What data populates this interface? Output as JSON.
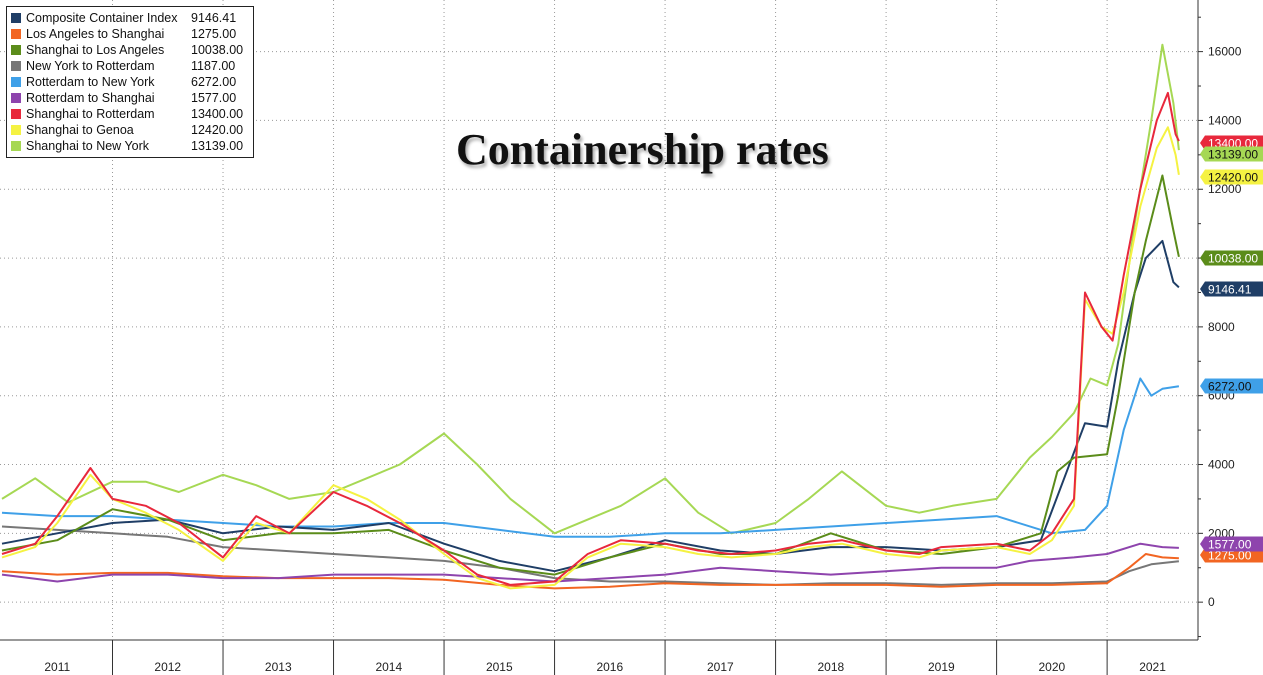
{
  "chart_data": {
    "type": "line",
    "title": "Containership rates",
    "xlabel": "",
    "ylabel": "",
    "ylim": [
      -1100,
      17500
    ],
    "y_ticks": [
      0,
      2000,
      4000,
      6000,
      8000,
      10000,
      12000,
      14000,
      16000
    ],
    "y_tick_labels": [
      "0",
      "2000",
      "4000",
      "6000",
      "8000",
      "10000",
      "12000",
      "14000",
      "16000"
    ],
    "x_years": [
      "2011",
      "2012",
      "2013",
      "2014",
      "2015",
      "2016",
      "2017",
      "2018",
      "2019",
      "2020",
      "2021"
    ],
    "x_range": [
      2011.0,
      2021.75
    ],
    "grid": true,
    "legend_position": "top-left",
    "series": [
      {
        "name": "Composite Container Index",
        "color": "#1f3e66",
        "last_label": "9146.41",
        "points": [
          [
            2011.0,
            1700
          ],
          [
            2011.5,
            2000
          ],
          [
            2012.0,
            2300
          ],
          [
            2012.5,
            2400
          ],
          [
            2013.0,
            2000
          ],
          [
            2013.5,
            2200
          ],
          [
            2014.0,
            2100
          ],
          [
            2014.5,
            2300
          ],
          [
            2015.0,
            1700
          ],
          [
            2015.5,
            1200
          ],
          [
            2016.0,
            900
          ],
          [
            2016.5,
            1300
          ],
          [
            2017.0,
            1800
          ],
          [
            2017.5,
            1500
          ],
          [
            2018.0,
            1400
          ],
          [
            2018.5,
            1600
          ],
          [
            2019.0,
            1600
          ],
          [
            2019.5,
            1500
          ],
          [
            2020.0,
            1600
          ],
          [
            2020.4,
            1800
          ],
          [
            2020.6,
            3500
          ],
          [
            2020.8,
            5200
          ],
          [
            2021.0,
            5100
          ],
          [
            2021.1,
            7000
          ],
          [
            2021.25,
            9000
          ],
          [
            2021.35,
            10000
          ],
          [
            2021.5,
            10500
          ],
          [
            2021.6,
            9300
          ],
          [
            2021.65,
            9146.41
          ]
        ]
      },
      {
        "name": "Los Angeles to Shanghai",
        "color": "#f26522",
        "last_label": "1275.00",
        "points": [
          [
            2011.0,
            900
          ],
          [
            2011.5,
            800
          ],
          [
            2012.0,
            850
          ],
          [
            2012.5,
            850
          ],
          [
            2013.0,
            750
          ],
          [
            2013.5,
            700
          ],
          [
            2014.0,
            700
          ],
          [
            2014.5,
            700
          ],
          [
            2015.0,
            650
          ],
          [
            2015.5,
            500
          ],
          [
            2016.0,
            400
          ],
          [
            2016.5,
            450
          ],
          [
            2017.0,
            550
          ],
          [
            2017.5,
            500
          ],
          [
            2018.0,
            500
          ],
          [
            2018.5,
            500
          ],
          [
            2019.0,
            500
          ],
          [
            2019.5,
            450
          ],
          [
            2020.0,
            500
          ],
          [
            2020.5,
            500
          ],
          [
            2021.0,
            550
          ],
          [
            2021.2,
            1000
          ],
          [
            2021.35,
            1400
          ],
          [
            2021.5,
            1300
          ],
          [
            2021.65,
            1275
          ]
        ]
      },
      {
        "name": "Shanghai to Los Angeles",
        "color": "#5b8c1a",
        "last_label": "10038.00",
        "points": [
          [
            2011.0,
            1500
          ],
          [
            2011.5,
            1800
          ],
          [
            2012.0,
            2700
          ],
          [
            2012.5,
            2400
          ],
          [
            2013.0,
            1800
          ],
          [
            2013.5,
            2000
          ],
          [
            2014.0,
            2000
          ],
          [
            2014.5,
            2100
          ],
          [
            2015.0,
            1500
          ],
          [
            2015.5,
            1000
          ],
          [
            2016.0,
            800
          ],
          [
            2016.5,
            1300
          ],
          [
            2017.0,
            1700
          ],
          [
            2017.5,
            1400
          ],
          [
            2018.0,
            1400
          ],
          [
            2018.5,
            2000
          ],
          [
            2019.0,
            1500
          ],
          [
            2019.5,
            1400
          ],
          [
            2020.0,
            1600
          ],
          [
            2020.4,
            2000
          ],
          [
            2020.55,
            3800
          ],
          [
            2020.7,
            4200
          ],
          [
            2021.0,
            4300
          ],
          [
            2021.1,
            6000
          ],
          [
            2021.25,
            9000
          ],
          [
            2021.35,
            10500
          ],
          [
            2021.5,
            12400
          ],
          [
            2021.6,
            10800
          ],
          [
            2021.65,
            10038
          ]
        ]
      },
      {
        "name": "New York to Rotterdam",
        "color": "#777777",
        "last_label": "1187.00",
        "points": [
          [
            2011.0,
            2200
          ],
          [
            2011.5,
            2100
          ],
          [
            2012.0,
            2000
          ],
          [
            2012.5,
            1900
          ],
          [
            2013.0,
            1600
          ],
          [
            2013.5,
            1500
          ],
          [
            2014.0,
            1400
          ],
          [
            2014.5,
            1300
          ],
          [
            2015.0,
            1200
          ],
          [
            2015.5,
            1000
          ],
          [
            2016.0,
            700
          ],
          [
            2016.5,
            600
          ],
          [
            2017.0,
            600
          ],
          [
            2017.5,
            550
          ],
          [
            2018.0,
            500
          ],
          [
            2018.5,
            550
          ],
          [
            2019.0,
            550
          ],
          [
            2019.5,
            500
          ],
          [
            2020.0,
            550
          ],
          [
            2020.5,
            550
          ],
          [
            2021.0,
            600
          ],
          [
            2021.2,
            900
          ],
          [
            2021.4,
            1100
          ],
          [
            2021.65,
            1187
          ]
        ]
      },
      {
        "name": "Rotterdam to New York",
        "color": "#3fa0e8",
        "last_label": "6272.00",
        "points": [
          [
            2011.0,
            2600
          ],
          [
            2011.5,
            2500
          ],
          [
            2012.0,
            2500
          ],
          [
            2012.5,
            2400
          ],
          [
            2013.0,
            2300
          ],
          [
            2013.5,
            2200
          ],
          [
            2014.0,
            2200
          ],
          [
            2014.5,
            2300
          ],
          [
            2015.0,
            2300
          ],
          [
            2015.5,
            2100
          ],
          [
            2016.0,
            1900
          ],
          [
            2016.5,
            1900
          ],
          [
            2017.0,
            2000
          ],
          [
            2017.5,
            2000
          ],
          [
            2018.0,
            2100
          ],
          [
            2018.5,
            2200
          ],
          [
            2019.0,
            2300
          ],
          [
            2019.5,
            2400
          ],
          [
            2020.0,
            2500
          ],
          [
            2020.5,
            2000
          ],
          [
            2020.8,
            2100
          ],
          [
            2021.0,
            2800
          ],
          [
            2021.15,
            5000
          ],
          [
            2021.3,
            6500
          ],
          [
            2021.4,
            6000
          ],
          [
            2021.5,
            6200
          ],
          [
            2021.65,
            6272
          ]
        ]
      },
      {
        "name": "Rotterdam to Shanghai",
        "color": "#8e44ad",
        "last_label": "1577.00",
        "points": [
          [
            2011.0,
            800
          ],
          [
            2011.5,
            600
          ],
          [
            2012.0,
            800
          ],
          [
            2012.5,
            800
          ],
          [
            2013.0,
            700
          ],
          [
            2013.5,
            700
          ],
          [
            2014.0,
            800
          ],
          [
            2014.5,
            800
          ],
          [
            2015.0,
            800
          ],
          [
            2015.5,
            700
          ],
          [
            2016.0,
            600
          ],
          [
            2016.5,
            700
          ],
          [
            2017.0,
            800
          ],
          [
            2017.5,
            1000
          ],
          [
            2018.0,
            900
          ],
          [
            2018.5,
            800
          ],
          [
            2019.0,
            900
          ],
          [
            2019.5,
            1000
          ],
          [
            2020.0,
            1000
          ],
          [
            2020.3,
            1200
          ],
          [
            2020.7,
            1300
          ],
          [
            2021.0,
            1400
          ],
          [
            2021.3,
            1700
          ],
          [
            2021.5,
            1600
          ],
          [
            2021.65,
            1577
          ]
        ]
      },
      {
        "name": "Shanghai to Rotterdam",
        "color": "#e8283c",
        "last_label": "13400.00",
        "points": [
          [
            2011.0,
            1400
          ],
          [
            2011.3,
            1700
          ],
          [
            2011.5,
            2500
          ],
          [
            2011.8,
            3900
          ],
          [
            2012.0,
            3000
          ],
          [
            2012.3,
            2800
          ],
          [
            2012.6,
            2300
          ],
          [
            2013.0,
            1300
          ],
          [
            2013.3,
            2500
          ],
          [
            2013.6,
            2000
          ],
          [
            2014.0,
            3200
          ],
          [
            2014.3,
            2800
          ],
          [
            2014.6,
            2300
          ],
          [
            2015.0,
            1500
          ],
          [
            2015.3,
            800
          ],
          [
            2015.6,
            500
          ],
          [
            2016.0,
            600
          ],
          [
            2016.3,
            1400
          ],
          [
            2016.6,
            1800
          ],
          [
            2017.0,
            1700
          ],
          [
            2017.3,
            1500
          ],
          [
            2017.6,
            1400
          ],
          [
            2018.0,
            1500
          ],
          [
            2018.3,
            1700
          ],
          [
            2018.6,
            1800
          ],
          [
            2019.0,
            1500
          ],
          [
            2019.3,
            1400
          ],
          [
            2019.5,
            1600
          ],
          [
            2020.0,
            1700
          ],
          [
            2020.3,
            1500
          ],
          [
            2020.5,
            2000
          ],
          [
            2020.7,
            3000
          ],
          [
            2020.8,
            9000
          ],
          [
            2020.95,
            8000
          ],
          [
            2021.05,
            7600
          ],
          [
            2021.15,
            9500
          ],
          [
            2021.3,
            12000
          ],
          [
            2021.45,
            14000
          ],
          [
            2021.55,
            14800
          ],
          [
            2021.62,
            13600
          ],
          [
            2021.65,
            13400
          ]
        ]
      },
      {
        "name": "Shanghai to Genoa",
        "color": "#f5f242",
        "last_label": "12420.00",
        "points": [
          [
            2011.0,
            1300
          ],
          [
            2011.3,
            1600
          ],
          [
            2011.5,
            2300
          ],
          [
            2011.8,
            3700
          ],
          [
            2012.0,
            3000
          ],
          [
            2012.3,
            2600
          ],
          [
            2012.6,
            2100
          ],
          [
            2013.0,
            1200
          ],
          [
            2013.3,
            2300
          ],
          [
            2013.6,
            2000
          ],
          [
            2014.0,
            3400
          ],
          [
            2014.3,
            3000
          ],
          [
            2014.6,
            2400
          ],
          [
            2015.0,
            1400
          ],
          [
            2015.3,
            700
          ],
          [
            2015.6,
            400
          ],
          [
            2016.0,
            500
          ],
          [
            2016.3,
            1300
          ],
          [
            2016.6,
            1700
          ],
          [
            2017.0,
            1600
          ],
          [
            2017.3,
            1400
          ],
          [
            2017.6,
            1300
          ],
          [
            2018.0,
            1400
          ],
          [
            2018.3,
            1600
          ],
          [
            2018.6,
            1700
          ],
          [
            2019.0,
            1400
          ],
          [
            2019.3,
            1300
          ],
          [
            2019.5,
            1500
          ],
          [
            2020.0,
            1600
          ],
          [
            2020.3,
            1400
          ],
          [
            2020.5,
            1800
          ],
          [
            2020.7,
            2800
          ],
          [
            2020.8,
            8800
          ],
          [
            2020.95,
            8000
          ],
          [
            2021.05,
            7800
          ],
          [
            2021.15,
            9000
          ],
          [
            2021.3,
            11500
          ],
          [
            2021.45,
            13200
          ],
          [
            2021.55,
            13800
          ],
          [
            2021.62,
            13000
          ],
          [
            2021.65,
            12420
          ]
        ]
      },
      {
        "name": "Shanghai to New York",
        "color": "#a6d854",
        "last_label": "13139.00",
        "points": [
          [
            2011.0,
            3000
          ],
          [
            2011.3,
            3600
          ],
          [
            2011.6,
            2900
          ],
          [
            2012.0,
            3500
          ],
          [
            2012.3,
            3500
          ],
          [
            2012.6,
            3200
          ],
          [
            2013.0,
            3700
          ],
          [
            2013.3,
            3400
          ],
          [
            2013.6,
            3000
          ],
          [
            2014.0,
            3200
          ],
          [
            2014.3,
            3600
          ],
          [
            2014.6,
            4000
          ],
          [
            2015.0,
            4900
          ],
          [
            2015.3,
            4000
          ],
          [
            2015.6,
            3000
          ],
          [
            2016.0,
            2000
          ],
          [
            2016.3,
            2400
          ],
          [
            2016.6,
            2800
          ],
          [
            2017.0,
            3600
          ],
          [
            2017.3,
            2600
          ],
          [
            2017.6,
            2000
          ],
          [
            2018.0,
            2300
          ],
          [
            2018.3,
            3000
          ],
          [
            2018.6,
            3800
          ],
          [
            2019.0,
            2800
          ],
          [
            2019.3,
            2600
          ],
          [
            2019.6,
            2800
          ],
          [
            2020.0,
            3000
          ],
          [
            2020.3,
            4200
          ],
          [
            2020.5,
            4800
          ],
          [
            2020.7,
            5500
          ],
          [
            2020.85,
            6500
          ],
          [
            2021.0,
            6300
          ],
          [
            2021.1,
            7500
          ],
          [
            2021.25,
            11000
          ],
          [
            2021.4,
            14000
          ],
          [
            2021.5,
            16200
          ],
          [
            2021.6,
            14500
          ],
          [
            2021.65,
            13139
          ]
        ]
      }
    ]
  }
}
